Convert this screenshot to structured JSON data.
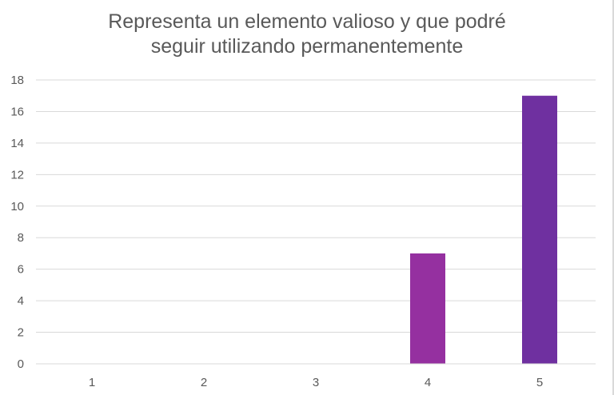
{
  "chart_data": {
    "type": "bar",
    "title_lines": [
      "Representa un elemento valioso y que podré",
      "seguir utilizando permanentemente"
    ],
    "categories": [
      "1",
      "2",
      "3",
      "4",
      "5"
    ],
    "values": [
      0,
      0,
      0,
      7,
      17
    ],
    "xlabel": "",
    "ylabel": "",
    "ylim": [
      0,
      18
    ],
    "ytick_step": 2,
    "grid": true,
    "legend": "none",
    "bar_colors": [
      "#9530a0",
      "#9530a0",
      "#9530a0",
      "#9530a0",
      "#6f30a0"
    ],
    "gridline_color": "#d9d9d9",
    "axis_color": "#d9d9d9",
    "text_color": "#595959"
  }
}
